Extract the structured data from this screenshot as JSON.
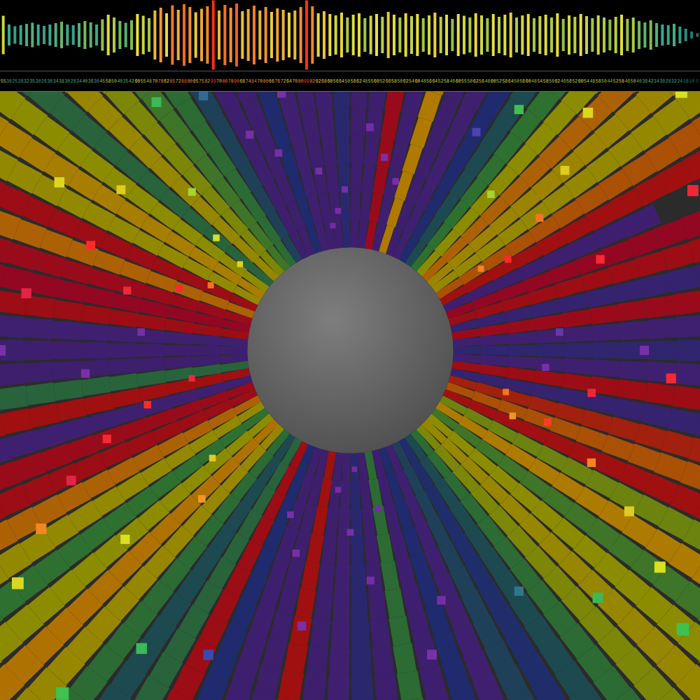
{
  "chart_data": [
    {
      "type": "bar",
      "values": [
        55,
        30,
        25,
        28,
        32,
        35,
        30,
        26,
        30,
        34,
        38,
        30,
        28,
        34,
        40,
        36,
        30,
        45,
        58,
        50,
        40,
        35,
        42,
        60,
        55,
        48,
        70,
        78,
        62,
        85,
        72,
        88,
        80,
        65,
        75,
        82,
        99,
        70,
        86,
        78,
        90,
        68,
        74,
        84,
        70,
        80,
        66,
        76,
        72,
        64,
        70,
        80,
        99,
        82,
        62,
        68,
        60,
        56,
        64,
        50,
        58,
        62,
        48,
        55,
        60,
        52,
        66,
        58,
        50,
        62,
        54,
        60,
        48,
        56,
        64,
        52,
        58,
        46,
        60,
        55,
        50,
        62,
        56,
        48,
        60,
        52,
        58,
        64,
        50,
        56,
        60,
        48,
        54,
        58,
        50,
        62,
        46,
        56,
        52,
        60,
        54,
        48,
        56,
        50,
        44,
        52,
        58,
        46,
        50,
        40,
        36,
        42,
        34,
        30,
        28,
        32,
        24,
        18,
        10,
        5
      ],
      "ylim": [
        -100,
        100
      ],
      "tick_labels": false,
      "data_labels": true,
      "color_domain": [
        0,
        30,
        45,
        60,
        80,
        99
      ],
      "color_range": [
        "#1a6060",
        "#3aa890",
        "#90c040",
        "#e8e040",
        "#f09030",
        "#ff3010"
      ]
    },
    {
      "type": "radial",
      "xlim": [
        -500,
        500
      ],
      "ylim": [
        -500,
        500
      ],
      "tick_labels": false,
      "rays": {
        "angle": [
          0,
          4,
          8,
          12,
          16,
          20,
          24,
          28,
          32,
          36,
          40,
          44,
          48,
          52,
          56,
          60,
          64,
          68,
          72,
          76,
          80,
          84,
          88,
          92,
          96,
          100,
          104,
          108,
          112,
          116,
          120,
          124,
          128,
          132,
          136,
          140,
          144,
          148,
          152,
          156,
          160,
          164,
          168,
          172,
          176,
          180,
          184,
          188,
          192,
          196,
          200,
          204,
          208,
          212,
          216,
          220,
          224,
          228,
          232,
          236,
          240,
          244,
          248,
          252,
          256,
          260,
          264,
          268,
          272,
          276,
          280,
          284,
          288,
          292,
          296,
          300,
          304,
          308,
          312,
          316,
          320,
          324,
          328,
          332,
          336,
          340,
          344,
          348,
          352,
          356
        ],
        "length": [
          520,
          750,
          750,
          600,
          750,
          750,
          480,
          750,
          700,
          750,
          750,
          750,
          640,
          560,
          500,
          620,
          750,
          750,
          750,
          750,
          750,
          750,
          620,
          750,
          750,
          750,
          560,
          750,
          750,
          640,
          520,
          600,
          750,
          750,
          750,
          680,
          750,
          750,
          750,
          750,
          750,
          750,
          750,
          750,
          700,
          750,
          750,
          580,
          750,
          660,
          750,
          750,
          750,
          750,
          750,
          750,
          750,
          750,
          750,
          620,
          750,
          750,
          750,
          750,
          750,
          750,
          750,
          750,
          700,
          750,
          560,
          750,
          750,
          750,
          750,
          750,
          750,
          750,
          750,
          750,
          750,
          700,
          750,
          750,
          750,
          560,
          750,
          750,
          600,
          750
        ],
        "value": [
          20,
          15,
          92,
          18,
          90,
          95,
          12,
          88,
          80,
          65,
          68,
          78,
          62,
          50,
          35,
          25,
          15,
          10,
          75,
          12,
          92,
          10,
          8,
          22,
          12,
          10,
          14,
          25,
          10,
          12,
          32,
          48,
          52,
          60,
          66,
          45,
          62,
          72,
          64,
          90,
          78,
          92,
          95,
          90,
          15,
          12,
          10,
          45,
          88,
          15,
          92,
          90,
          78,
          64,
          50,
          62,
          76,
          66,
          48,
          35,
          45,
          90,
          25,
          12,
          8,
          88,
          10,
          14,
          22,
          10,
          48,
          12,
          25,
          15,
          32,
          26,
          35,
          48,
          60,
          66,
          62,
          52,
          74,
          58,
          88,
          80,
          86,
          18,
          90,
          14
        ]
      },
      "squares": {
        "angle": [
          95,
          100,
          85,
          105,
          92,
          110,
          80,
          88,
          98,
          115,
          75,
          102,
          265,
          270,
          275,
          260,
          280,
          255,
          285,
          268,
          272,
          290,
          250,
          262,
          278,
          294,
          140,
          135,
          145,
          150,
          130,
          138,
          142,
          128,
          160,
          165,
          158,
          170,
          162,
          168,
          155,
          190,
          195,
          200,
          205,
          210,
          215,
          220,
          225,
          230,
          235,
          240,
          218,
          30,
          35,
          40,
          45,
          25,
          32,
          38,
          48,
          55,
          50,
          20,
          28,
          345,
          340,
          335,
          330,
          325,
          320,
          315,
          350,
          355,
          310,
          300,
          305,
          338,
          5,
          0,
          10,
          8,
          355,
          2,
          185,
          180,
          175,
          178,
          60,
          65,
          70,
          120,
          118,
          245,
          250,
          285
        ],
        "radius": [
          200,
          260,
          320,
          380,
          230,
          300,
          280,
          420,
          180,
          340,
          250,
          470,
          200,
          260,
          330,
          400,
          230,
          300,
          450,
          520,
          170,
          380,
          250,
          600,
          640,
          560,
          250,
          320,
          400,
          480,
          550,
          620,
          200,
          450,
          260,
          330,
          400,
          470,
          540,
          600,
          220,
          230,
          300,
          370,
          440,
          510,
          580,
          420,
          300,
          640,
          520,
          700,
          250,
          260,
          330,
          400,
          480,
          540,
          220,
          600,
          300,
          420,
          680,
          380,
          650,
          230,
          300,
          380,
          460,
          540,
          620,
          500,
          350,
          460,
          700,
          640,
          420,
          250,
          300,
          420,
          520,
          640,
          280,
          600,
          380,
          500,
          300,
          620,
          360,
          450,
          560,
          420,
          560,
          480,
          620,
          560
        ],
        "value": [
          10,
          12,
          8,
          14,
          10,
          12,
          15,
          10,
          8,
          12,
          14,
          10,
          10,
          12,
          8,
          14,
          10,
          12,
          15,
          10,
          8,
          12,
          14,
          10,
          12,
          20,
          62,
          58,
          66,
          64,
          50,
          60,
          65,
          48,
          90,
          92,
          88,
          95,
          90,
          92,
          80,
          92,
          88,
          90,
          95,
          78,
          64,
          62,
          76,
          50,
          48,
          45,
          66,
          88,
          80,
          66,
          64,
          92,
          78,
          62,
          58,
          50,
          65,
          90,
          95,
          80,
          86,
          78,
          66,
          62,
          50,
          48,
          92,
          90,
          48,
          35,
          32,
          76,
          18,
          14,
          12,
          15,
          16,
          20,
          14,
          15,
          12,
          10,
          22,
          15,
          18,
          30,
          25,
          25,
          20,
          20
        ]
      },
      "color_domain": [
        0,
        15,
        25,
        35,
        50,
        62,
        75,
        88,
        100
      ],
      "ray_colors": [
        "#3a1d6a",
        "#3f2070",
        "#1f2b6e",
        "#1d4a50",
        "#2e7030",
        "#8c8c00",
        "#b07a00",
        "#a01010",
        "#8a0030"
      ],
      "square_colors": [
        "#6a2a9a",
        "#7a30a8",
        "#3a4ab0",
        "#2a8a7a",
        "#40c050",
        "#d8e020",
        "#f0a020",
        "#ff2a2a",
        "#d0205a"
      ]
    }
  ]
}
